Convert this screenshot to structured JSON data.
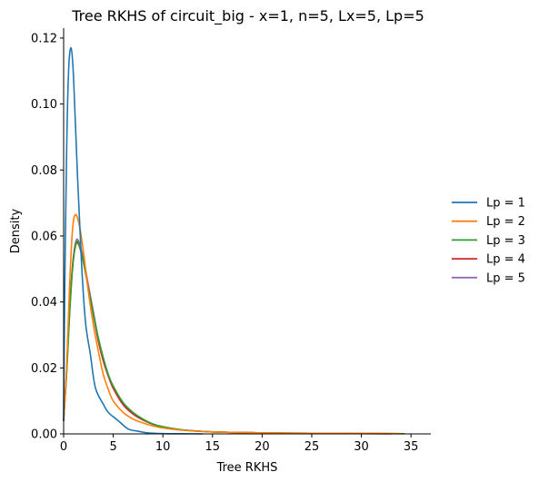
{
  "chart_data": {
    "type": "line",
    "title": "Tree RKHS of circuit_big - x=1, n=5, Lx=5, Lp=5",
    "xlabel": "Tree RKHS",
    "ylabel": "Density",
    "xlim": [
      0,
      37
    ],
    "ylim": [
      0,
      0.123
    ],
    "x_ticks": [
      0,
      5,
      10,
      15,
      20,
      25,
      30,
      35
    ],
    "x_tick_labels": [
      "0",
      "5",
      "10",
      "15",
      "20",
      "25",
      "30",
      "35"
    ],
    "y_ticks": [
      0.0,
      0.02,
      0.04,
      0.06,
      0.08,
      0.1,
      0.12
    ],
    "y_tick_labels": [
      "0.00",
      "0.02",
      "0.04",
      "0.06",
      "0.08",
      "0.10",
      "0.12"
    ],
    "grid": false,
    "legend_position": "right",
    "series": [
      {
        "name": "Lp = 1",
        "color": "#1f77b4",
        "points": [
          [
            0,
            0.004
          ],
          [
            0.1,
            0.04
          ],
          [
            0.3,
            0.085
          ],
          [
            0.5,
            0.11
          ],
          [
            0.75,
            0.117
          ],
          [
            1.0,
            0.108
          ],
          [
            1.4,
            0.078
          ],
          [
            1.8,
            0.052
          ],
          [
            2.2,
            0.034
          ],
          [
            2.7,
            0.024
          ],
          [
            3.2,
            0.014
          ],
          [
            4.0,
            0.009
          ],
          [
            4.5,
            0.0065
          ],
          [
            5.5,
            0.004
          ],
          [
            6.5,
            0.0015
          ],
          [
            7.5,
            0.0008
          ],
          [
            8.5,
            0.0003
          ],
          [
            10,
            0.0001
          ],
          [
            12,
            5e-05
          ],
          [
            14,
            0.0
          ]
        ]
      },
      {
        "name": "Lp = 2",
        "color": "#ff7f0e",
        "points": [
          [
            0,
            0.004
          ],
          [
            0.3,
            0.02
          ],
          [
            0.6,
            0.045
          ],
          [
            0.9,
            0.062
          ],
          [
            1.2,
            0.0665
          ],
          [
            1.6,
            0.063
          ],
          [
            2.0,
            0.055
          ],
          [
            2.5,
            0.043
          ],
          [
            3.0,
            0.033
          ],
          [
            3.5,
            0.025
          ],
          [
            4.0,
            0.018
          ],
          [
            4.5,
            0.0135
          ],
          [
            5.0,
            0.01
          ],
          [
            6.0,
            0.0065
          ],
          [
            7.0,
            0.0045
          ],
          [
            8.0,
            0.0033
          ],
          [
            9.0,
            0.0024
          ],
          [
            10,
            0.0018
          ],
          [
            12,
            0.0011
          ],
          [
            15,
            0.0006
          ],
          [
            20,
            0.0003
          ],
          [
            25,
            0.0002
          ],
          [
            30,
            0.0002
          ],
          [
            34,
            0.0001
          ]
        ]
      },
      {
        "name": "Lp = 3",
        "color": "#2ca02c",
        "points": [
          [
            0,
            0.004
          ],
          [
            0.3,
            0.018
          ],
          [
            0.6,
            0.036
          ],
          [
            0.9,
            0.05
          ],
          [
            1.2,
            0.057
          ],
          [
            1.5,
            0.058
          ],
          [
            2.0,
            0.052
          ],
          [
            2.5,
            0.044
          ],
          [
            3.0,
            0.036
          ],
          [
            3.5,
            0.029
          ],
          [
            4.0,
            0.023
          ],
          [
            4.5,
            0.018
          ],
          [
            5.0,
            0.0145
          ],
          [
            6.0,
            0.0095
          ],
          [
            7.0,
            0.0065
          ],
          [
            8.0,
            0.0045
          ],
          [
            9.0,
            0.003
          ],
          [
            10,
            0.0022
          ],
          [
            12,
            0.0012
          ],
          [
            15,
            0.0006
          ],
          [
            20,
            0.0003
          ],
          [
            25,
            0.0002
          ],
          [
            30,
            0.00015
          ],
          [
            34.3,
            5e-05
          ]
        ]
      },
      {
        "name": "Lp = 4",
        "color": "#d62728",
        "points": [
          [
            0,
            0.004
          ],
          [
            0.3,
            0.019
          ],
          [
            0.6,
            0.037
          ],
          [
            0.9,
            0.051
          ],
          [
            1.2,
            0.057
          ],
          [
            1.5,
            0.0575
          ],
          [
            2.0,
            0.052
          ],
          [
            2.5,
            0.044
          ],
          [
            3.0,
            0.036
          ],
          [
            3.5,
            0.028
          ],
          [
            4.0,
            0.022
          ],
          [
            4.5,
            0.0175
          ],
          [
            5.0,
            0.0138
          ],
          [
            6.0,
            0.0088
          ],
          [
            7.0,
            0.006
          ],
          [
            8.0,
            0.0042
          ],
          [
            9.0,
            0.0029
          ],
          [
            10,
            0.0021
          ],
          [
            12,
            0.0012
          ],
          [
            15,
            0.0006
          ],
          [
            20,
            0.0003
          ],
          [
            25,
            0.0002
          ],
          [
            30,
            0.0001
          ],
          [
            33,
            5e-05
          ]
        ]
      },
      {
        "name": "Lp = 5",
        "color": "#9467bd",
        "points": [
          [
            0,
            0.004
          ],
          [
            0.3,
            0.019
          ],
          [
            0.6,
            0.037
          ],
          [
            0.9,
            0.051
          ],
          [
            1.2,
            0.058
          ],
          [
            1.5,
            0.0585
          ],
          [
            2.0,
            0.053
          ],
          [
            2.5,
            0.045
          ],
          [
            3.0,
            0.037
          ],
          [
            3.5,
            0.029
          ],
          [
            4.0,
            0.023
          ],
          [
            4.5,
            0.018
          ],
          [
            5.0,
            0.0142
          ],
          [
            6.0,
            0.009
          ],
          [
            7.0,
            0.0062
          ],
          [
            8.0,
            0.0043
          ],
          [
            9.0,
            0.003
          ],
          [
            10,
            0.0021
          ],
          [
            12,
            0.0012
          ],
          [
            15,
            0.0006
          ],
          [
            20,
            0.0003
          ],
          [
            25,
            0.0002
          ],
          [
            30,
            0.0001
          ],
          [
            33,
            5e-05
          ]
        ]
      }
    ]
  }
}
